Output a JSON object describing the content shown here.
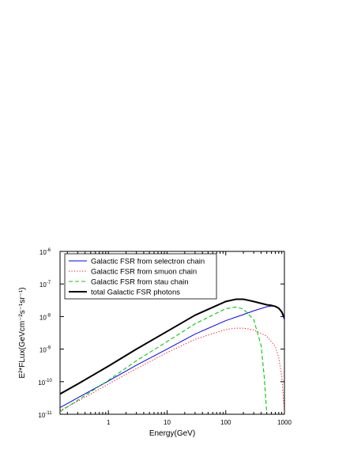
{
  "chart_data": {
    "type": "line",
    "xlabel": "Energy(GeV)",
    "ylabel": "E²*FLux(GeVcm⁻²s⁻¹sr⁻¹)",
    "x_scale": "log",
    "y_scale": "log",
    "xlim": [
      0.15,
      1000
    ],
    "ylim": [
      1e-11,
      1e-06
    ],
    "x_ticks": [
      {
        "value": 1,
        "label": "1"
      },
      {
        "value": 10,
        "label": "10"
      },
      {
        "value": 100,
        "label": "100"
      },
      {
        "value": 1000,
        "label": "1000"
      }
    ],
    "y_ticks": [
      {
        "value": 1e-11,
        "base": "10",
        "exp": "-11"
      },
      {
        "value": 1e-10,
        "base": "10",
        "exp": "-10"
      },
      {
        "value": 1e-09,
        "base": "10",
        "exp": "-9"
      },
      {
        "value": 1e-08,
        "base": "10",
        "exp": "-8"
      },
      {
        "value": 1e-07,
        "base": "10",
        "exp": "-7"
      },
      {
        "value": 1e-06,
        "base": "10",
        "exp": "-6"
      }
    ],
    "grid": false,
    "legend_position": "top-left",
    "series": [
      {
        "name": "Galactic FSR from selectron chain",
        "color": "#0000ff",
        "dash": "solid",
        "width": 1,
        "x": [
          0.15,
          0.3,
          1,
          3,
          10,
          30,
          100,
          200,
          300,
          500,
          600,
          700,
          800,
          900,
          1000
        ],
        "y": [
          1.6e-11,
          3.2e-11,
          1.05e-10,
          3.2e-10,
          1e-09,
          2.9e-09,
          7.5e-09,
          1.15e-08,
          1.5e-08,
          2e-08,
          2.1e-08,
          2.05e-08,
          1.8e-08,
          1.3e-08,
          8e-09
        ]
      },
      {
        "name": "Galactic FSR from smuon chain",
        "color": "#ff0000",
        "dash": "dotted",
        "width": 1,
        "x": [
          0.15,
          0.3,
          1,
          3,
          10,
          30,
          100,
          150,
          200,
          300,
          500,
          700,
          800,
          900,
          950,
          1000
        ],
        "y": [
          1.3e-11,
          2.5e-11,
          8.5e-11,
          2.5e-10,
          7.8e-10,
          2e-09,
          4e-09,
          4.4e-09,
          4.4e-09,
          3.9e-09,
          2.5e-09,
          1.2e-09,
          5.5e-10,
          1.5e-10,
          4e-11,
          1.1e-11
        ]
      },
      {
        "name": "Galactic FSR from stau chain",
        "color": "#00cc00",
        "dash": "dashed",
        "width": 1.1,
        "x": [
          0.15,
          0.3,
          1,
          3,
          10,
          30,
          100,
          150,
          200,
          300,
          400,
          450,
          500
        ],
        "y": [
          1.2e-11,
          2.7e-11,
          1.1e-10,
          4.4e-10,
          1.7e-09,
          6e-09,
          1.75e-08,
          1.95e-08,
          1.7e-08,
          8e-09,
          1.3e-09,
          1.6e-10,
          1.1e-11
        ]
      },
      {
        "name": "total Galactic FSR photons",
        "color": "#000000",
        "dash": "solid",
        "width": 2,
        "x": [
          0.15,
          0.3,
          1,
          3,
          10,
          30,
          100,
          150,
          200,
          300,
          500,
          600,
          700,
          800,
          900,
          1000
        ],
        "y": [
          4.2e-11,
          8.5e-11,
          3e-10,
          1e-09,
          3.5e-09,
          1.1e-08,
          2.9e-08,
          3.4e-08,
          3.4e-08,
          2.9e-08,
          2.3e-08,
          2.2e-08,
          2.05e-08,
          1.8e-08,
          1.4e-08,
          9e-09
        ]
      }
    ]
  }
}
